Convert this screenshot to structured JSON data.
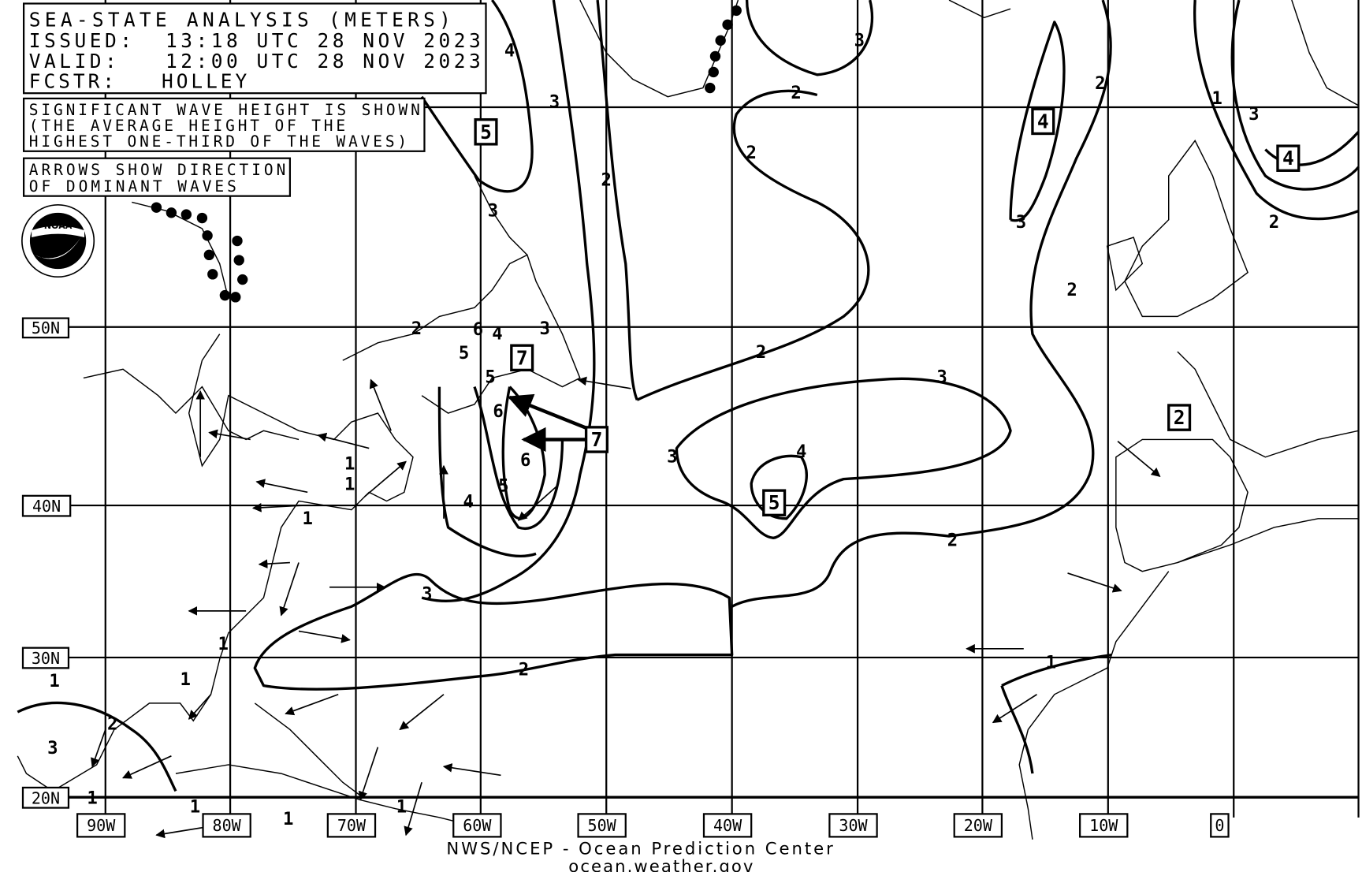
{
  "header": {
    "title": "SEA-STATE ANALYSIS (METERS)",
    "issued": "ISSUED:  13:18 UTC 28 NOV 2023",
    "valid": "VALID:   12:00 UTC 28 NOV 2023",
    "forecaster": "FCSTR:   HOLLEY"
  },
  "notes": {
    "wave_height": [
      "SIGNIFICANT WAVE HEIGHT IS SHOWN",
      "(THE AVERAGE HEIGHT OF THE",
      "HIGHEST ONE-THIRD OF THE WAVES)"
    ],
    "arrows": [
      "ARROWS SHOW DIRECTION",
      "OF DOMINANT WAVES"
    ]
  },
  "logo": {
    "text": "NOAA",
    "ring_text": "NATIONAL OCEANIC AND ATMOSPHERIC ADMINISTRATION U.S. DEPARTMENT OF COMMERCE",
    "icon": "noaa-logo-icon"
  },
  "latitude_labels": [
    "50N",
    "40N",
    "30N",
    "20N"
  ],
  "longitude_labels": [
    "90W",
    "80W",
    "70W",
    "60W",
    "50W",
    "40W",
    "30W",
    "20W",
    "10W",
    "0"
  ],
  "max_wave_boxes": [
    "5",
    "4",
    "4",
    "7",
    "7",
    "5",
    "2"
  ],
  "contour_labels": [
    "4",
    "3",
    "3",
    "2",
    "2",
    "1",
    "3",
    "2",
    "2",
    "3",
    "3",
    "2",
    "2",
    "2",
    "3",
    "3",
    "4",
    "6",
    "6",
    "5",
    "4",
    "5",
    "5",
    "3",
    "4",
    "6",
    "2",
    "1",
    "1",
    "1",
    "3",
    "2",
    "2",
    "1",
    "1",
    "1",
    "1",
    "2",
    "3",
    "1",
    "1",
    "1",
    "1"
  ],
  "footer": {
    "agency": "NWS/NCEP - Ocean Prediction Center",
    "website": "ocean.weather.gov"
  },
  "colors": {
    "ink": "#000000",
    "background": "#ffffff"
  }
}
